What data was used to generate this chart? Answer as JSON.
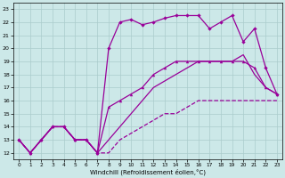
{
  "xlabel": "Windchill (Refroidissement éolien,°C)",
  "xlim": [
    -0.5,
    23.5
  ],
  "ylim": [
    11.5,
    23.5
  ],
  "xticks": [
    0,
    1,
    2,
    3,
    4,
    5,
    6,
    7,
    8,
    9,
    10,
    11,
    12,
    13,
    14,
    15,
    16,
    17,
    18,
    19,
    20,
    21,
    22,
    23
  ],
  "yticks": [
    12,
    13,
    14,
    15,
    16,
    17,
    18,
    19,
    20,
    21,
    22,
    23
  ],
  "bg_color": "#cce8e8",
  "grid_color": "#aacccc",
  "line_color": "#990099",
  "line1_x": [
    0,
    1,
    2,
    3,
    4,
    5,
    6,
    7,
    8,
    9,
    10,
    11,
    12,
    13,
    14,
    15,
    16,
    17,
    18,
    19,
    20,
    21,
    22,
    23
  ],
  "line1_y": [
    13,
    12,
    13,
    14,
    14,
    13,
    13,
    12,
    12,
    13,
    13.5,
    14,
    14.5,
    15,
    15,
    15.5,
    16,
    16,
    16,
    16,
    16,
    16,
    16,
    16
  ],
  "line2_x": [
    0,
    1,
    2,
    3,
    4,
    5,
    6,
    7,
    8,
    9,
    10,
    11,
    12,
    13,
    14,
    15,
    16,
    17,
    18,
    19,
    20,
    21,
    22,
    23
  ],
  "line2_y": [
    13,
    12,
    13,
    14,
    14,
    13,
    13,
    12,
    13,
    14,
    15,
    16,
    17,
    17.5,
    18,
    18.5,
    19,
    19,
    19,
    19,
    19.5,
    18,
    17,
    16.5
  ],
  "line3_x": [
    0,
    1,
    2,
    3,
    4,
    5,
    6,
    7,
    8,
    9,
    10,
    11,
    12,
    13,
    14,
    15,
    16,
    17,
    18,
    19,
    20,
    21,
    22,
    23
  ],
  "line3_y": [
    13,
    12,
    13,
    14,
    14,
    13,
    13,
    12,
    20,
    22,
    22.2,
    21.8,
    22,
    22.3,
    22.5,
    22.5,
    22.5,
    21.5,
    22,
    22.5,
    20.5,
    21.5,
    18.5,
    16.5
  ],
  "line4_x": [
    0,
    1,
    2,
    3,
    4,
    5,
    6,
    7,
    8,
    9,
    10,
    11,
    12,
    13,
    14,
    15,
    16,
    17,
    18,
    19,
    20,
    21,
    22,
    23
  ],
  "line4_y": [
    13,
    12,
    13,
    14,
    14,
    13,
    13,
    12,
    15.5,
    16,
    16.5,
    17,
    18,
    18.5,
    19,
    19,
    19,
    19,
    19,
    19,
    19,
    18.5,
    17,
    16.5
  ]
}
